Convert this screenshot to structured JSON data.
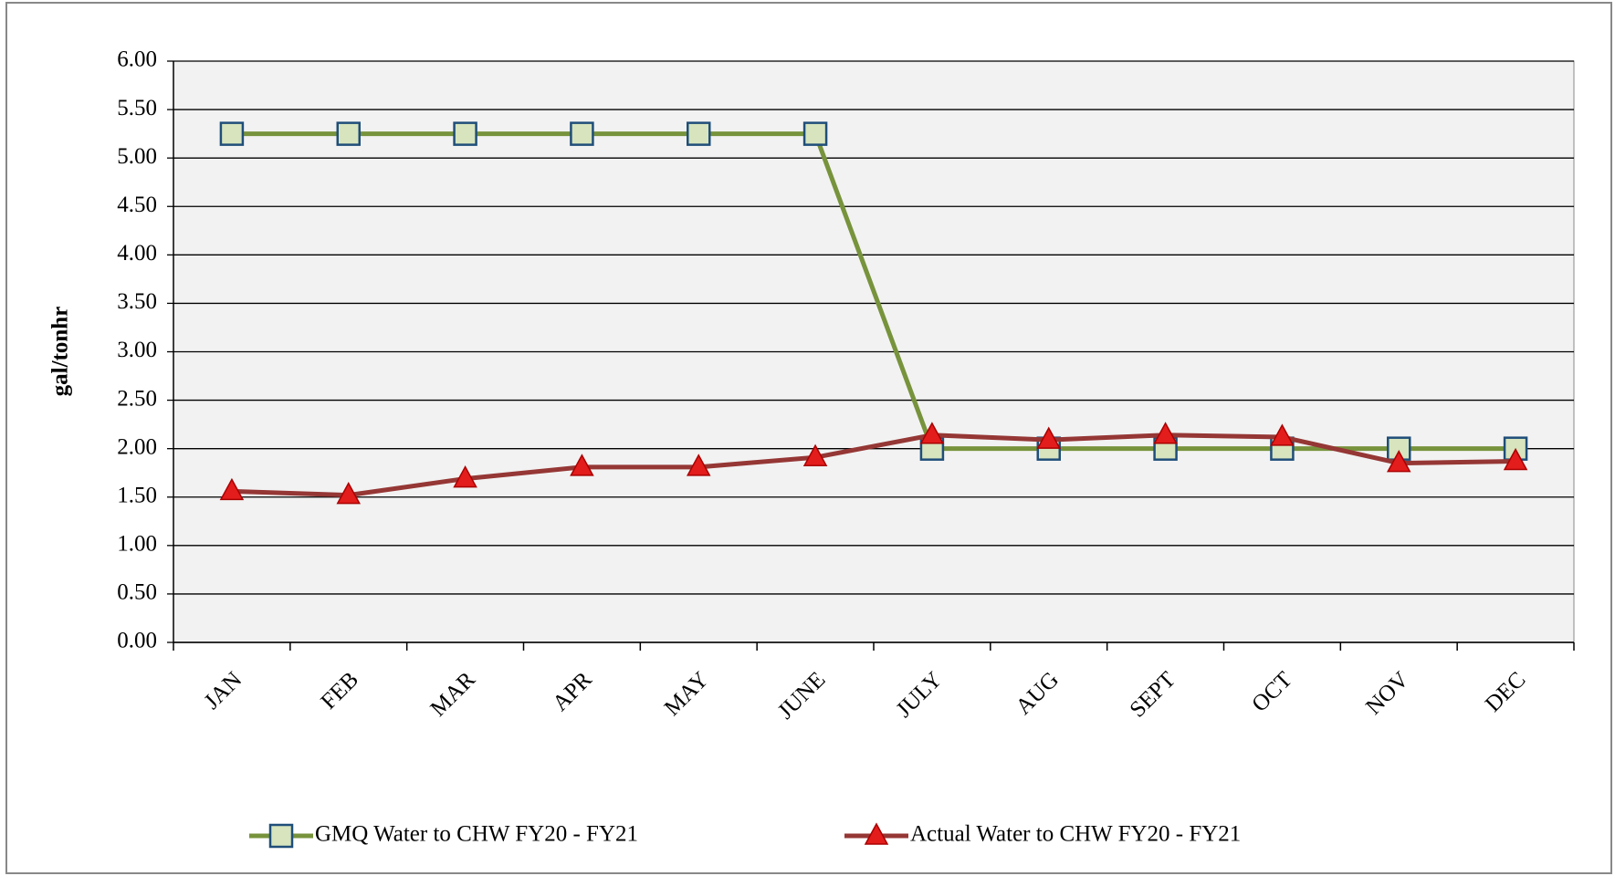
{
  "chart_data": {
    "type": "line",
    "y_label": "gal/tonhr",
    "categories": [
      "JAN",
      "FEB",
      "MAR",
      "APR",
      "MAY",
      "JUNE",
      "JULY",
      "AUG",
      "SEPT",
      "OCT",
      "NOV",
      "DEC"
    ],
    "series": [
      {
        "name": "GMQ Water to CHW FY20 - FY21",
        "color": "#77933c",
        "marker": "square",
        "values": [
          5.25,
          5.25,
          5.25,
          5.25,
          5.25,
          5.25,
          2.0,
          2.0,
          2.0,
          2.0,
          2.0,
          2.0
        ]
      },
      {
        "name": "Actual Water to CHW FY20 - FY21",
        "color": "#953735",
        "marker": "triangle",
        "values": [
          1.56,
          1.52,
          1.69,
          1.81,
          1.81,
          1.91,
          2.14,
          2.09,
          2.14,
          2.12,
          1.85,
          1.87
        ]
      }
    ],
    "ylim": [
      0,
      6
    ],
    "yticks": [
      {
        "value": 0,
        "label": "0.00"
      },
      {
        "value": 0.5,
        "label": "0.50"
      },
      {
        "value": 1,
        "label": "1.00"
      },
      {
        "value": 1.5,
        "label": "1.50"
      },
      {
        "value": 2,
        "label": "2.00"
      },
      {
        "value": 2.5,
        "label": "2.50"
      },
      {
        "value": 3,
        "label": "3.00"
      },
      {
        "value": 3.5,
        "label": "3.50"
      },
      {
        "value": 4,
        "label": "4.00"
      },
      {
        "value": 4.5,
        "label": "4.50"
      },
      {
        "value": 5,
        "label": "5.00"
      },
      {
        "value": 5.5,
        "label": "5.50"
      },
      {
        "value": 6,
        "label": "6.00"
      }
    ],
    "grid": true,
    "legend": "bottom"
  }
}
